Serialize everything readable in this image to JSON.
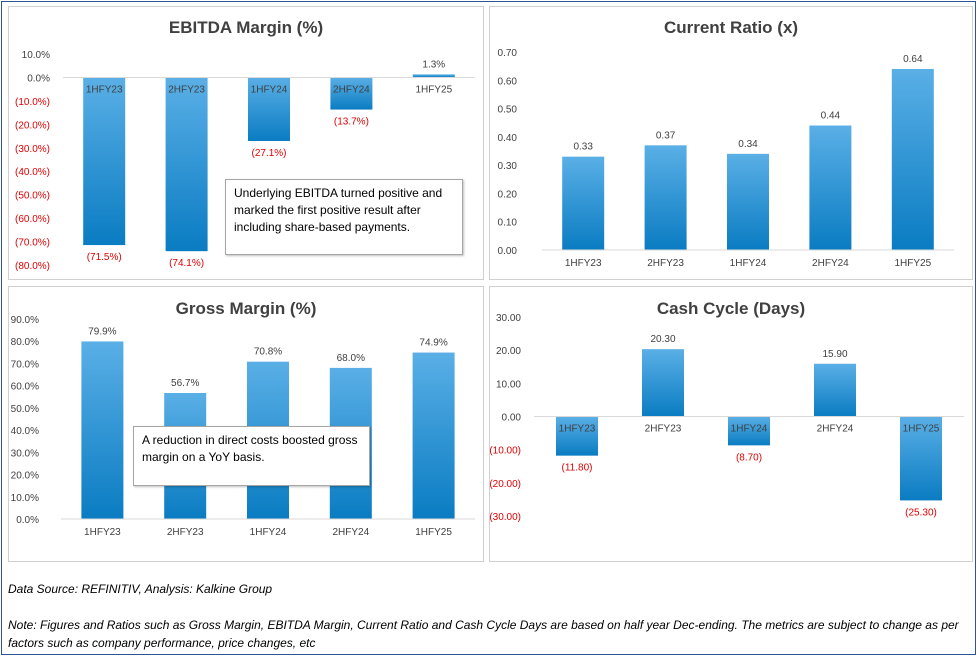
{
  "colors": {
    "bar_top": "#5aafe6",
    "bar_bottom": "#0a7cc2",
    "negative_label": "#e00000",
    "text": "#404040",
    "grid": "#d9d9d9",
    "frame": "#2f5496"
  },
  "chart_data": [
    {
      "id": "ebitda",
      "type": "bar",
      "title": "EBITDA Margin (%)",
      "categories": [
        "1HFY23",
        "2HFY23",
        "1HFY24",
        "2HFY24",
        "1HFY25"
      ],
      "values": [
        -71.5,
        -74.1,
        -27.1,
        -13.7,
        1.3
      ],
      "value_labels": [
        "(71.5%)",
        "(74.1%)",
        "(27.1%)",
        "(13.7%)",
        "1.3%"
      ],
      "ylim": [
        -80,
        10
      ],
      "yticks": [
        10,
        0,
        -10,
        -20,
        -30,
        -40,
        -50,
        -60,
        -70,
        -80
      ],
      "ytick_labels": [
        "10.0%",
        "0.0%",
        "(10.0%)",
        "(20.0%)",
        "(30.0%)",
        "(40.0%)",
        "(50.0%)",
        "(60.0%)",
        "(70.0%)",
        "(80.0%)"
      ],
      "grid": false,
      "category_labels_at": "zero-line",
      "annotation": "Underlying EBITDA turned positive and marked the first positive result after including share-based payments."
    },
    {
      "id": "current",
      "type": "bar",
      "title": "Current Ratio (x)",
      "categories": [
        "1HFY23",
        "2HFY23",
        "1HFY24",
        "2HFY24",
        "1HFY25"
      ],
      "values": [
        0.33,
        0.37,
        0.34,
        0.44,
        0.64
      ],
      "value_labels": [
        "0.33",
        "0.37",
        "0.34",
        "0.44",
        "0.64"
      ],
      "ylim": [
        0,
        0.7
      ],
      "yticks": [
        0.7,
        0.6,
        0.5,
        0.4,
        0.3,
        0.2,
        0.1,
        0
      ],
      "ytick_labels": [
        "0.70",
        "0.60",
        "0.50",
        "0.40",
        "0.30",
        "0.20",
        "0.10",
        "0.00"
      ],
      "grid": false,
      "category_labels_at": "bottom"
    },
    {
      "id": "gross",
      "type": "bar",
      "title": "Gross Margin (%)",
      "categories": [
        "1HFY23",
        "2HFY23",
        "1HFY24",
        "2HFY24",
        "1HFY25"
      ],
      "values": [
        79.9,
        56.7,
        70.8,
        68.0,
        74.9
      ],
      "value_labels": [
        "79.9%",
        "56.7%",
        "70.8%",
        "68.0%",
        "74.9%"
      ],
      "ylim": [
        0,
        90
      ],
      "yticks": [
        90,
        80,
        70,
        60,
        50,
        40,
        30,
        20,
        10,
        0
      ],
      "ytick_labels": [
        "90.0%",
        "80.0%",
        "70.0%",
        "60.0%",
        "50.0%",
        "40.0%",
        "30.0%",
        "20.0%",
        "10.0%",
        "0.0%"
      ],
      "grid": false,
      "category_labels_at": "bottom",
      "annotation": "A reduction in direct costs boosted gross margin on a YoY basis."
    },
    {
      "id": "cash",
      "type": "bar",
      "title": "Cash Cycle (Days)",
      "categories": [
        "1HFY23",
        "2HFY23",
        "1HFY24",
        "2HFY24",
        "1HFY25"
      ],
      "values": [
        -11.8,
        20.3,
        -8.7,
        15.9,
        -25.3
      ],
      "value_labels": [
        "(11.80)",
        "20.30",
        "(8.70)",
        "15.90",
        "(25.30)"
      ],
      "ylim": [
        -30,
        30
      ],
      "yticks": [
        30,
        20,
        10,
        0,
        -10,
        -20,
        -30
      ],
      "ytick_labels": [
        "30.00",
        "20.00",
        "10.00",
        "0.00",
        "(10.00)",
        "(20.00)",
        "(30.00)"
      ],
      "grid": false,
      "category_labels_at": "zero-line"
    }
  ],
  "footer": {
    "source": "Data Source: REFINITIV, Analysis: Kalkine Group",
    "note": "Note: Figures and Ratios such as Gross Margin, EBITDA Margin, Current Ratio and Cash Cycle Days are based on half year Dec-ending. The metrics are subject to change as per factors such as company performance, price changes, etc"
  }
}
